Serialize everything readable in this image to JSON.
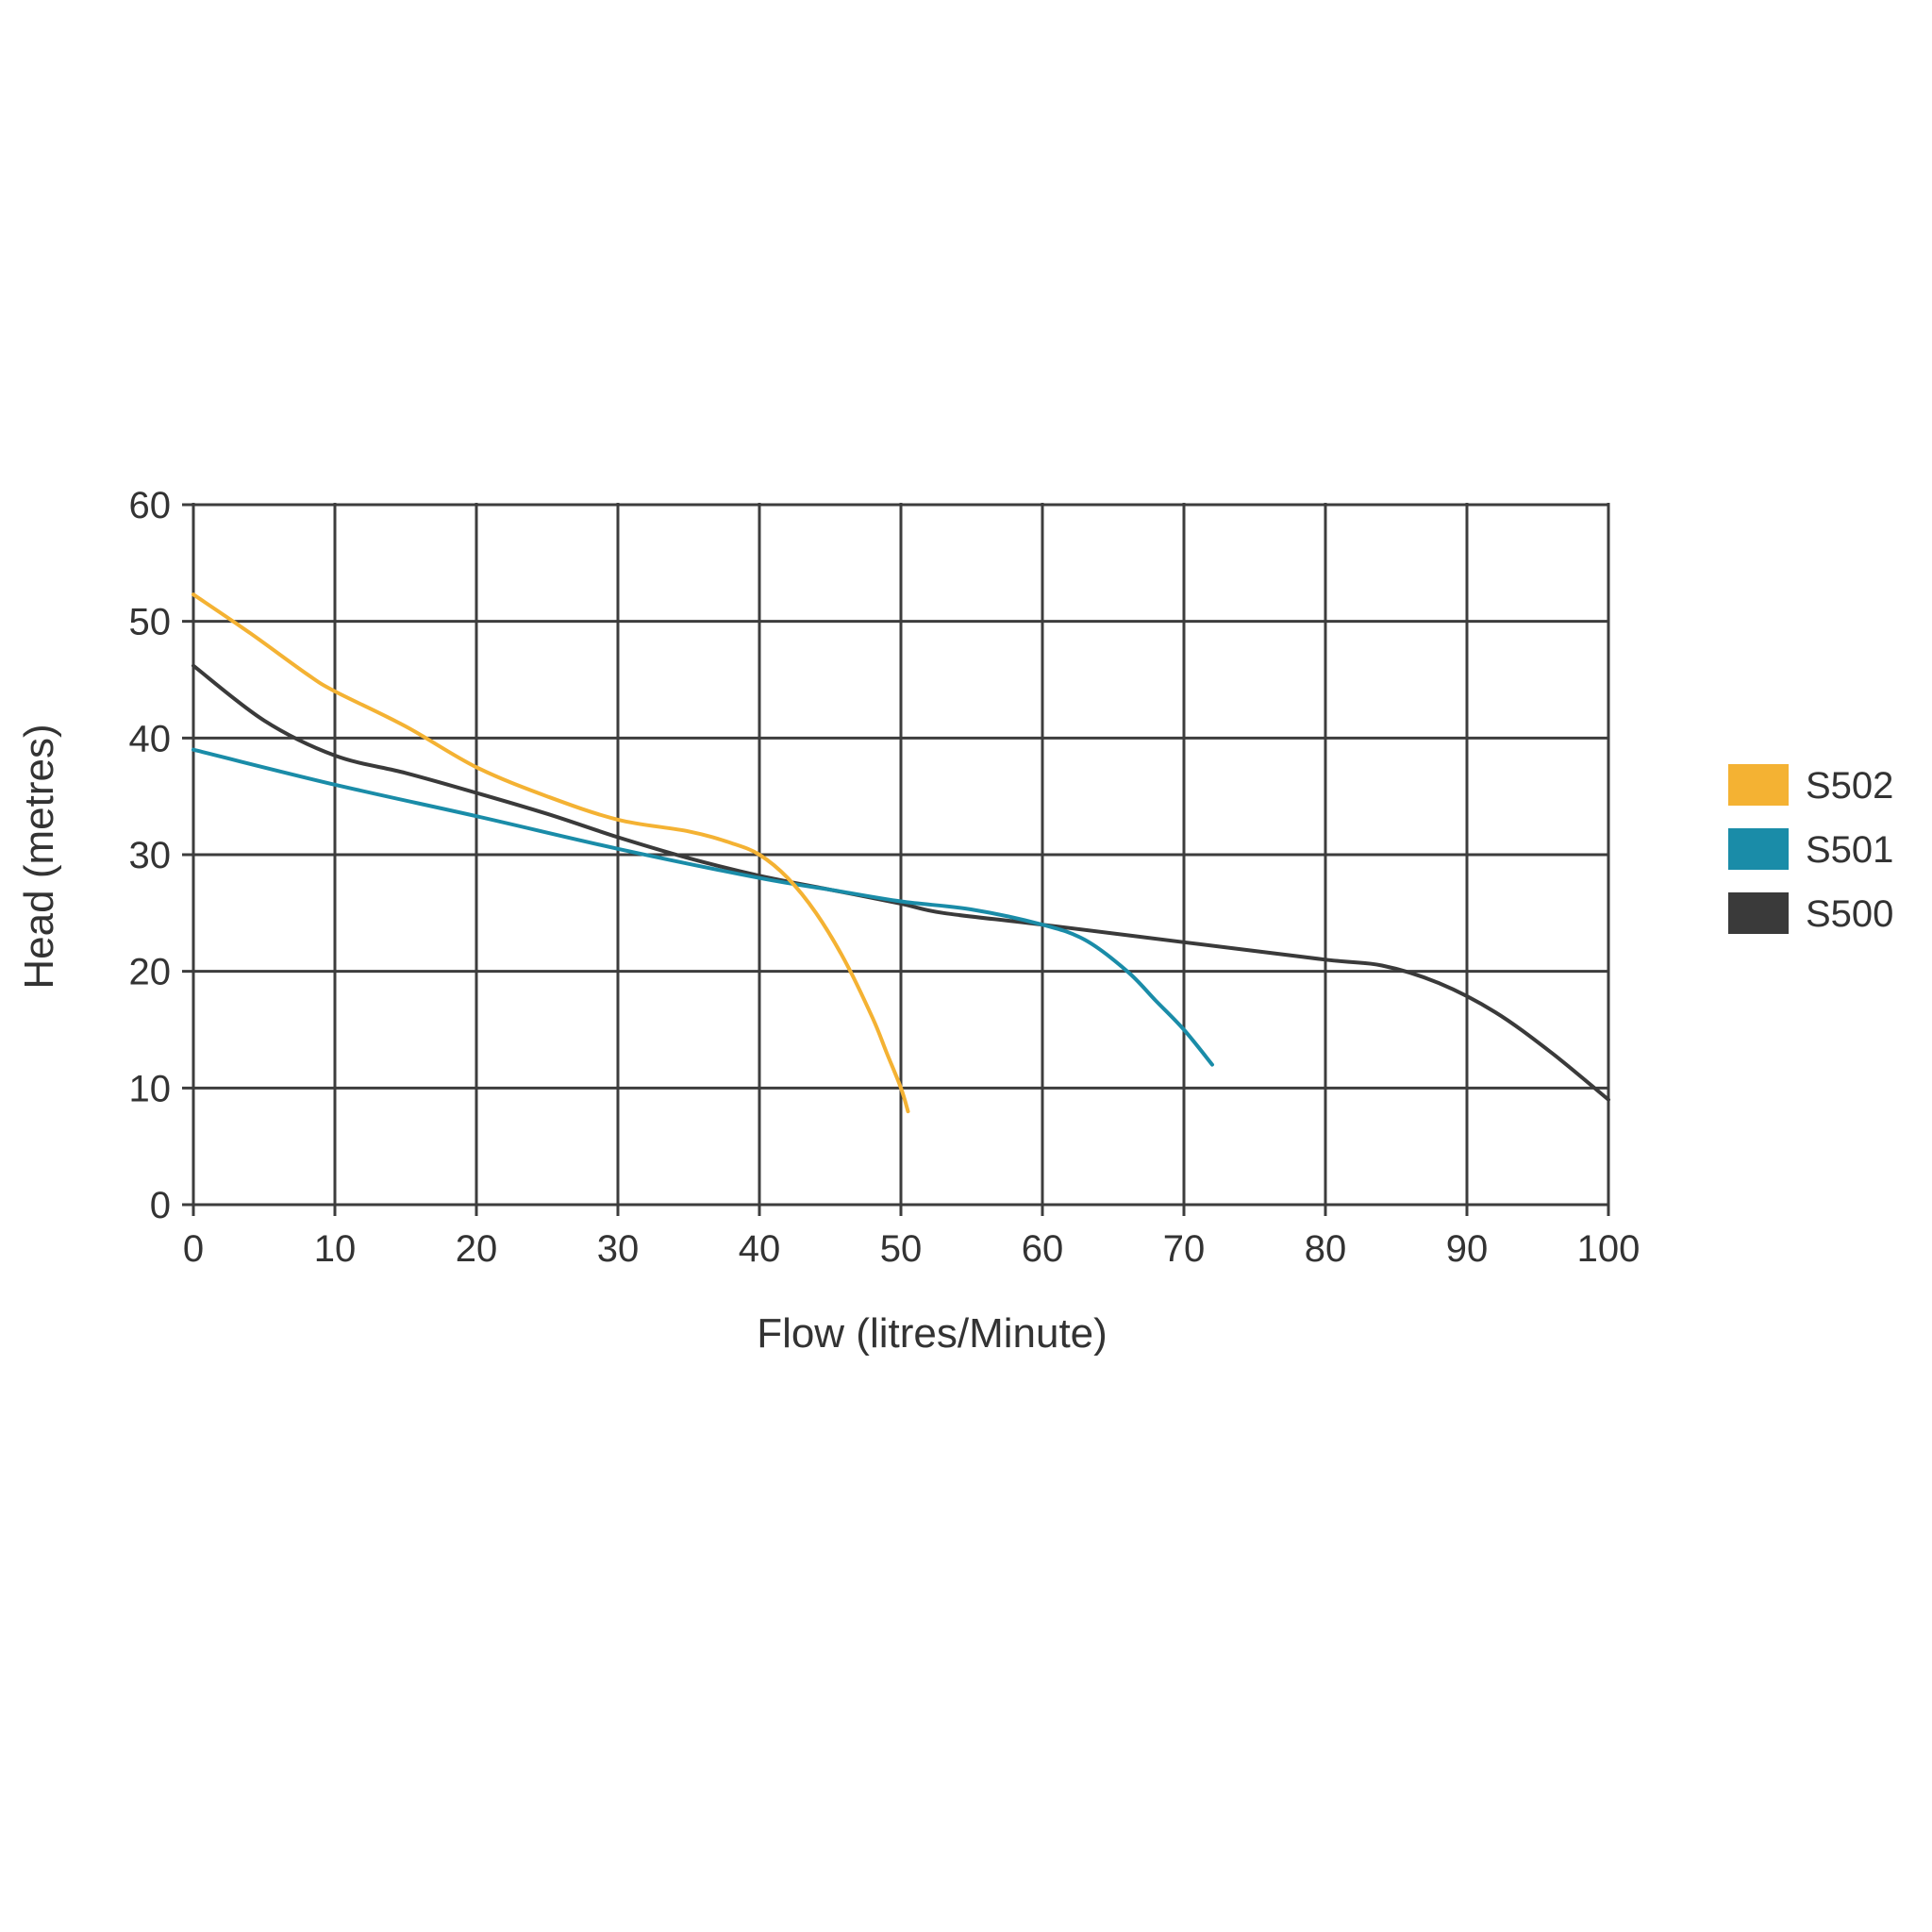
{
  "chart_data": {
    "type": "line",
    "title": "",
    "xlabel": "Flow (litres/Minute)",
    "ylabel": "Head (metres)",
    "xlim": [
      0,
      100
    ],
    "ylim": [
      0,
      60
    ],
    "x_ticks": [
      0,
      10,
      20,
      30,
      40,
      50,
      60,
      70,
      80,
      90,
      100
    ],
    "y_ticks": [
      0,
      10,
      20,
      30,
      40,
      50,
      60
    ],
    "grid": true,
    "legend_position": "right",
    "series": [
      {
        "name": "S502",
        "color": "#f4b233",
        "x": [
          0,
          4,
          8,
          10,
          15,
          20,
          25,
          30,
          35,
          38,
          40,
          42,
          44,
          46,
          48,
          49,
          50,
          50.5
        ],
        "y": [
          52.3,
          49,
          45.5,
          44,
          41,
          37.5,
          35,
          33,
          32,
          31,
          30,
          28,
          25,
          21,
          16,
          13,
          10,
          8
        ]
      },
      {
        "name": "S501",
        "color": "#1a8ca8",
        "x": [
          0,
          10,
          20,
          30,
          40,
          45,
          50,
          55,
          60,
          63,
          66,
          68,
          70,
          72
        ],
        "y": [
          39,
          36,
          33.3,
          30.5,
          28,
          27,
          26,
          25.3,
          24,
          22.7,
          20,
          17.5,
          15,
          12
        ]
      },
      {
        "name": "S500",
        "color": "#3a3a3a",
        "x": [
          0,
          5,
          10,
          15,
          20,
          25,
          30,
          35,
          40,
          45,
          50,
          53,
          60,
          70,
          80,
          84,
          88,
          92,
          96,
          100
        ],
        "y": [
          46.2,
          41.5,
          38.5,
          37,
          35.3,
          33.5,
          31.5,
          29.7,
          28.2,
          27,
          25.8,
          25,
          24,
          22.5,
          21,
          20.5,
          19,
          16.5,
          13,
          9
        ]
      }
    ]
  }
}
